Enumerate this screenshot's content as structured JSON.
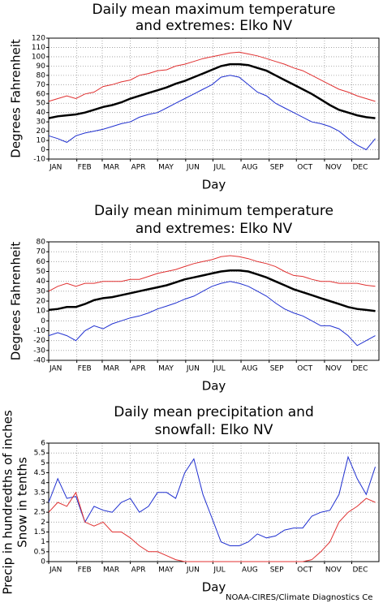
{
  "chart_data": [
    {
      "type": "line",
      "title": [
        "Daily mean maximum temperature",
        "and extremes: Elko NV"
      ],
      "xlabel": "Day",
      "ylabel": "Degrees Fahrenheit",
      "x": [
        1,
        11,
        21,
        31,
        41,
        51,
        61,
        71,
        81,
        91,
        101,
        111,
        121,
        131,
        141,
        151,
        161,
        171,
        181,
        191,
        201,
        211,
        221,
        231,
        241,
        251,
        261,
        271,
        281,
        291,
        301,
        311,
        321,
        331,
        341,
        351,
        361
      ],
      "xlim": [
        1,
        365
      ],
      "ylim": [
        -10,
        120
      ],
      "xticks": [
        {
          "value": 1,
          "label": "JAN"
        },
        {
          "value": 32,
          "label": "FEB"
        },
        {
          "value": 60,
          "label": "MAR"
        },
        {
          "value": 91,
          "label": "APR"
        },
        {
          "value": 121,
          "label": "MAY"
        },
        {
          "value": 152,
          "label": "JUN"
        },
        {
          "value": 182,
          "label": "JUL"
        },
        {
          "value": 213,
          "label": "AUG"
        },
        {
          "value": 244,
          "label": "SEP"
        },
        {
          "value": 274,
          "label": "OCT"
        },
        {
          "value": 305,
          "label": "NOV"
        },
        {
          "value": 335,
          "label": "DEC"
        }
      ],
      "yticks": [
        -10,
        0,
        10,
        20,
        30,
        40,
        50,
        60,
        70,
        80,
        90,
        100,
        110,
        120
      ],
      "grid": true,
      "series": [
        {
          "color": "#e03030",
          "values": [
            52,
            55,
            58,
            55,
            60,
            62,
            68,
            70,
            73,
            75,
            80,
            82,
            85,
            86,
            90,
            92,
            95,
            98,
            100,
            102,
            104,
            105,
            103,
            101,
            98,
            95,
            92,
            88,
            85,
            80,
            75,
            70,
            65,
            62,
            58,
            55,
            52
          ]
        },
        {
          "color": "#2030d0",
          "values": [
            15,
            12,
            8,
            15,
            18,
            20,
            22,
            25,
            28,
            30,
            35,
            38,
            40,
            45,
            50,
            55,
            60,
            65,
            70,
            78,
            80,
            78,
            70,
            62,
            58,
            50,
            45,
            40,
            35,
            30,
            28,
            25,
            20,
            12,
            5,
            0,
            12
          ]
        },
        {
          "color": "#000000",
          "width": 2.5,
          "values": [
            34,
            36,
            37,
            38,
            40,
            43,
            46,
            48,
            51,
            55,
            58,
            61,
            64,
            67,
            71,
            74,
            78,
            82,
            86,
            90,
            92,
            92,
            91,
            88,
            85,
            80,
            75,
            70,
            65,
            60,
            54,
            48,
            43,
            40,
            37,
            35,
            34
          ]
        }
      ]
    },
    {
      "type": "line",
      "title": [
        "Daily mean minimum temperature",
        "and extremes: Elko NV"
      ],
      "xlabel": "Day",
      "ylabel": "Degrees Fahrenheit",
      "x": [
        1,
        11,
        21,
        31,
        41,
        51,
        61,
        71,
        81,
        91,
        101,
        111,
        121,
        131,
        141,
        151,
        161,
        171,
        181,
        191,
        201,
        211,
        221,
        231,
        241,
        251,
        261,
        271,
        281,
        291,
        301,
        311,
        321,
        331,
        341,
        351,
        361
      ],
      "xlim": [
        1,
        365
      ],
      "ylim": [
        -40,
        80
      ],
      "xticks": [
        {
          "value": 1,
          "label": "JAN"
        },
        {
          "value": 32,
          "label": "FEB"
        },
        {
          "value": 60,
          "label": "MAR"
        },
        {
          "value": 91,
          "label": "APR"
        },
        {
          "value": 121,
          "label": "MAY"
        },
        {
          "value": 152,
          "label": "JUN"
        },
        {
          "value": 182,
          "label": "JUL"
        },
        {
          "value": 213,
          "label": "AUG"
        },
        {
          "value": 244,
          "label": "SEP"
        },
        {
          "value": 274,
          "label": "OCT"
        },
        {
          "value": 305,
          "label": "NOV"
        },
        {
          "value": 335,
          "label": "DEC"
        }
      ],
      "yticks": [
        -40,
        -30,
        -20,
        -10,
        0,
        10,
        20,
        30,
        40,
        50,
        60,
        70,
        80
      ],
      "grid": true,
      "series": [
        {
          "color": "#e03030",
          "values": [
            30,
            35,
            38,
            35,
            38,
            38,
            40,
            40,
            40,
            42,
            42,
            45,
            48,
            50,
            52,
            55,
            58,
            60,
            62,
            65,
            66,
            65,
            63,
            60,
            58,
            55,
            50,
            46,
            45,
            42,
            40,
            40,
            38,
            38,
            38,
            36,
            35
          ]
        },
        {
          "color": "#2030d0",
          "values": [
            -15,
            -12,
            -15,
            -20,
            -10,
            -5,
            -8,
            -3,
            0,
            3,
            5,
            8,
            12,
            15,
            18,
            22,
            25,
            30,
            35,
            38,
            40,
            38,
            35,
            30,
            25,
            18,
            12,
            8,
            5,
            0,
            -5,
            -5,
            -8,
            -15,
            -25,
            -20,
            -15
          ]
        },
        {
          "color": "#000000",
          "width": 2.5,
          "values": [
            11,
            12,
            14,
            14,
            17,
            21,
            23,
            24,
            26,
            28,
            30,
            32,
            34,
            36,
            39,
            42,
            44,
            46,
            48,
            50,
            51,
            51,
            50,
            47,
            44,
            40,
            36,
            32,
            29,
            26,
            23,
            20,
            17,
            14,
            12,
            11,
            10
          ]
        }
      ]
    },
    {
      "type": "line",
      "title": [
        "Daily mean precipitation and",
        "snowfall: Elko NV"
      ],
      "xlabel": "Day",
      "ylabel": [
        "Precip in hundredths of inches",
        "Snow in tenths"
      ],
      "x": [
        1,
        11,
        21,
        31,
        41,
        51,
        61,
        71,
        81,
        91,
        101,
        111,
        121,
        131,
        141,
        151,
        161,
        171,
        181,
        191,
        201,
        211,
        221,
        231,
        241,
        251,
        261,
        271,
        281,
        291,
        301,
        311,
        321,
        331,
        341,
        351,
        361
      ],
      "xlim": [
        1,
        365
      ],
      "ylim": [
        0,
        6
      ],
      "xticks": [
        {
          "value": 1,
          "label": "JAN"
        },
        {
          "value": 32,
          "label": "FEB"
        },
        {
          "value": 60,
          "label": "MAR"
        },
        {
          "value": 91,
          "label": "APR"
        },
        {
          "value": 121,
          "label": "MAY"
        },
        {
          "value": 152,
          "label": "JUN"
        },
        {
          "value": 182,
          "label": "JUL"
        },
        {
          "value": 213,
          "label": "AUG"
        },
        {
          "value": 244,
          "label": "SEP"
        },
        {
          "value": 274,
          "label": "OCT"
        },
        {
          "value": 305,
          "label": "NOV"
        },
        {
          "value": 335,
          "label": "DEC"
        }
      ],
      "yticks": [
        0,
        0.5,
        1,
        1.5,
        2,
        2.5,
        3,
        3.5,
        4,
        4.5,
        5,
        5.5,
        6
      ],
      "grid": true,
      "series": [
        {
          "color": "#2030d0",
          "values": [
            3.0,
            4.2,
            3.2,
            3.3,
            2.0,
            2.8,
            2.6,
            2.5,
            3.0,
            3.2,
            2.5,
            2.8,
            3.5,
            3.5,
            3.2,
            4.5,
            5.2,
            3.4,
            2.2,
            1.0,
            0.8,
            0.8,
            1.0,
            1.4,
            1.2,
            1.3,
            1.6,
            1.7,
            1.7,
            2.3,
            2.5,
            2.6,
            3.4,
            5.3,
            4.2,
            3.4,
            4.8
          ]
        },
        {
          "color": "#e03030",
          "values": [
            2.5,
            3.0,
            2.8,
            3.5,
            2.0,
            1.8,
            2.0,
            1.5,
            1.5,
            1.2,
            0.8,
            0.5,
            0.5,
            0.3,
            0.1,
            0,
            0,
            0,
            0,
            0,
            0,
            0,
            0,
            0,
            0,
            0,
            0,
            0,
            0,
            0.1,
            0.5,
            1.0,
            2.0,
            2.5,
            2.8,
            3.2,
            3.0
          ]
        }
      ]
    }
  ],
  "footer": "NOAA-CIRES/Climate Diagnostics Ce"
}
